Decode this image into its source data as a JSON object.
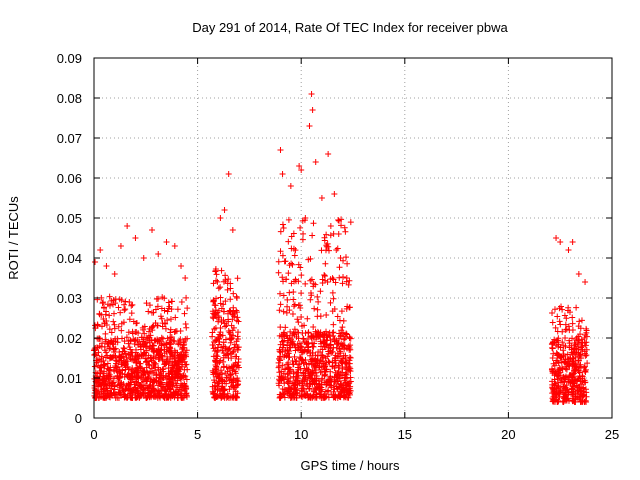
{
  "chart_data": {
    "type": "scatter",
    "title": "Day 291 of 2014, Rate Of TEC Index for receiver pbwa",
    "xlabel": "GPS time / hours",
    "ylabel": "ROTI / TECUs",
    "xlim": [
      0,
      25
    ],
    "ylim": [
      0,
      0.09
    ],
    "x_ticks": [
      0,
      5,
      10,
      15,
      20,
      25
    ],
    "y_ticks": [
      0,
      0.01,
      0.02,
      0.03,
      0.04,
      0.05,
      0.06,
      0.07,
      0.08,
      0.09
    ],
    "x_tick_labels": [
      "0",
      "5",
      "10",
      "15",
      "20",
      "25"
    ],
    "y_tick_labels": [
      "0",
      "0.01",
      "0.02",
      "0.03",
      "0.04",
      "0.05",
      "0.06",
      "0.07",
      "0.08",
      "0.09"
    ],
    "grid": true,
    "marker": "+",
    "marker_color": "#ff0000",
    "series": [
      {
        "name": "ROTI",
        "clusters": [
          {
            "x_range": [
              0.0,
              4.5
            ],
            "y_min": 0.005,
            "y_max": 0.049,
            "y_typical": 0.015
          },
          {
            "x_range": [
              5.7,
              7.0
            ],
            "y_min": 0.005,
            "y_max": 0.061,
            "y_typical": 0.02
          },
          {
            "x_range": [
              8.9,
              12.4
            ],
            "y_min": 0.005,
            "y_max": 0.081,
            "y_typical": 0.016
          },
          {
            "x_range": [
              22.1,
              23.8
            ],
            "y_min": 0.004,
            "y_max": 0.045,
            "y_typical": 0.015
          }
        ],
        "x": [
          0.05,
          0.3,
          0.6,
          1.0,
          1.3,
          1.6,
          2.0,
          2.4,
          2.8,
          3.1,
          3.5,
          3.9,
          4.2,
          4.4,
          6.1,
          6.3,
          6.5,
          6.7,
          6.9,
          9.0,
          9.1,
          9.5,
          9.9,
          10.0,
          10.2,
          10.4,
          10.5,
          10.55,
          10.7,
          11.0,
          11.3,
          11.6,
          11.9,
          12.2,
          22.3,
          22.5,
          22.9,
          23.1,
          23.4,
          23.7
        ],
        "y": [
          0.039,
          0.042,
          0.038,
          0.036,
          0.043,
          0.048,
          0.045,
          0.04,
          0.047,
          0.041,
          0.044,
          0.043,
          0.038,
          0.035,
          0.05,
          0.052,
          0.061,
          0.047,
          0.03,
          0.067,
          0.061,
          0.058,
          0.063,
          0.062,
          0.05,
          0.073,
          0.081,
          0.077,
          0.064,
          0.055,
          0.066,
          0.056,
          0.04,
          0.035,
          0.045,
          0.044,
          0.042,
          0.044,
          0.036,
          0.034
        ]
      }
    ]
  }
}
